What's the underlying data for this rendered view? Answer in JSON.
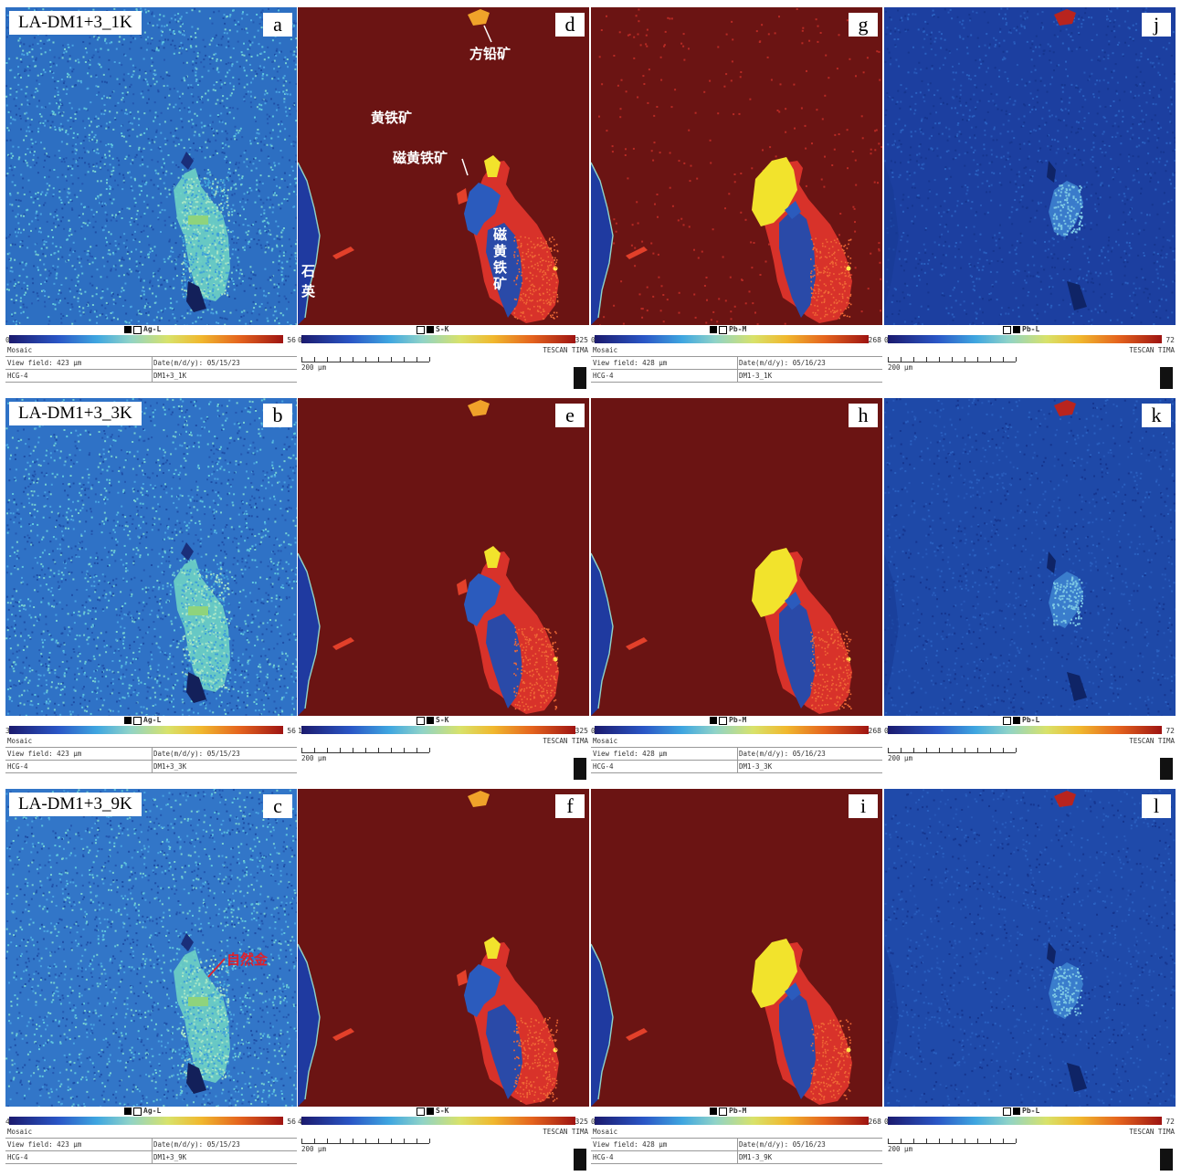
{
  "colors": {
    "s_background": "#6b1413",
    "ag_background": "#2c6fc6",
    "pb_l_background": "#1e49a8",
    "grain_blue": "#2a4aa8",
    "grain_red": "#d8322a",
    "grain_yellow": "#f2e32c",
    "colorbar_low": "#1b1a6e",
    "colorbar_high": "#9e1412"
  },
  "rows": [
    {
      "sample_label": "LA-DM1+3_1K",
      "panels": [
        {
          "letter": "a",
          "element": "Ag-L",
          "min": "0",
          "max": "56",
          "view_field": "View field: 423 μm",
          "date": "Date(m/d/y): 05/15/23",
          "mosaic": "Mosaic",
          "id_left": "HCG-4",
          "id_right": "DM1+3_1K"
        },
        {
          "letter": "d",
          "element": "S-K",
          "min": "0",
          "max": "325",
          "scale": "200 μm",
          "brand": "TESCAN TIMA"
        },
        {
          "letter": "g",
          "element": "Pb-M",
          "min": "0",
          "max": "268",
          "view_field": "View field: 428 μm",
          "date": "Date(m/d/y): 05/16/23",
          "mosaic": "Mosaic",
          "id_left": "HCG-4",
          "id_right": "DM1-3_1K"
        },
        {
          "letter": "j",
          "element": "Pb-L",
          "min": "0",
          "max": "72",
          "scale": "200 μm",
          "brand": "TESCAN TIMA"
        }
      ]
    },
    {
      "sample_label": "LA-DM1+3_3K",
      "panels": [
        {
          "letter": "b",
          "element": "Ag-L",
          "min": "3",
          "max": "56",
          "view_field": "View field: 423 μm",
          "date": "Date(m/d/y): 05/15/23",
          "mosaic": "Mosaic",
          "id_left": "HCG-4",
          "id_right": "DM1+3_3K"
        },
        {
          "letter": "e",
          "element": "S-K",
          "min": "1",
          "max": "325",
          "scale": "200 μm",
          "brand": "TESCAN TIMA"
        },
        {
          "letter": "h",
          "element": "Pb-M",
          "min": "0",
          "max": "268",
          "view_field": "View field: 428 μm",
          "date": "Date(m/d/y): 05/16/23",
          "mosaic": "Mosaic",
          "id_left": "HCG-4",
          "id_right": "DM1-3_3K"
        },
        {
          "letter": "k",
          "element": "Pb-L",
          "min": "0",
          "max": "72",
          "scale": "200 μm",
          "brand": "TESCAN TIMA"
        }
      ]
    },
    {
      "sample_label": "LA-DM1+3_9K",
      "panels": [
        {
          "letter": "c",
          "element": "Ag-L",
          "min": "4",
          "max": "56",
          "view_field": "View field: 423 μm",
          "date": "Date(m/d/y): 05/15/23",
          "mosaic": "Mosaic",
          "id_left": "HCG-4",
          "id_right": "DM1+3_9K"
        },
        {
          "letter": "f",
          "element": "S-K",
          "min": "4",
          "max": "325",
          "scale": "200 μm",
          "brand": "TESCAN TIMA"
        },
        {
          "letter": "i",
          "element": "Pb-M",
          "min": "0",
          "max": "268",
          "view_field": "View field: 428 μm",
          "date": "Date(m/d/y): 05/16/23",
          "mosaic": "Mosaic",
          "id_left": "HCG-4",
          "id_right": "DM1-3_9K"
        },
        {
          "letter": "l",
          "element": "Pb-L",
          "min": "0",
          "max": "72",
          "scale": "200 μm",
          "brand": "TESCAN TIMA"
        }
      ]
    }
  ],
  "annotations": {
    "galena": "方铅矿",
    "pyrite": "黄铁矿",
    "pyrrhotite_1": "磁黄铁矿",
    "pyrrhotite_2_chars": [
      "磁",
      "黄",
      "铁",
      "矿"
    ],
    "quartz_chars": [
      "石",
      "英"
    ],
    "native_gold": "自然金"
  }
}
